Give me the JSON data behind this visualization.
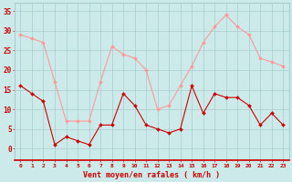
{
  "hours": [
    0,
    1,
    2,
    3,
    4,
    5,
    6,
    7,
    8,
    9,
    10,
    11,
    12,
    13,
    14,
    15,
    16,
    17,
    18,
    19,
    20,
    21,
    22,
    23
  ],
  "wind_avg": [
    16,
    14,
    12,
    1,
    3,
    2,
    1,
    6,
    6,
    14,
    11,
    6,
    5,
    4,
    5,
    16,
    9,
    14,
    13,
    13,
    11,
    6,
    9,
    6
  ],
  "wind_gust": [
    29,
    28,
    27,
    17,
    7,
    7,
    7,
    17,
    26,
    24,
    23,
    20,
    10,
    11,
    16,
    21,
    27,
    31,
    34,
    31,
    29,
    23,
    22,
    21
  ],
  "bg_color": "#cceaea",
  "grid_color": "#aacccc",
  "avg_color": "#cc0000",
  "gust_color": "#ff9999",
  "xlabel": "Vent moyen/en rafales ( km/h )",
  "ylabel_ticks": [
    0,
    5,
    10,
    15,
    20,
    25,
    30,
    35
  ],
  "ylim": [
    -3,
    37
  ],
  "xlim": [
    -0.5,
    23.5
  ]
}
